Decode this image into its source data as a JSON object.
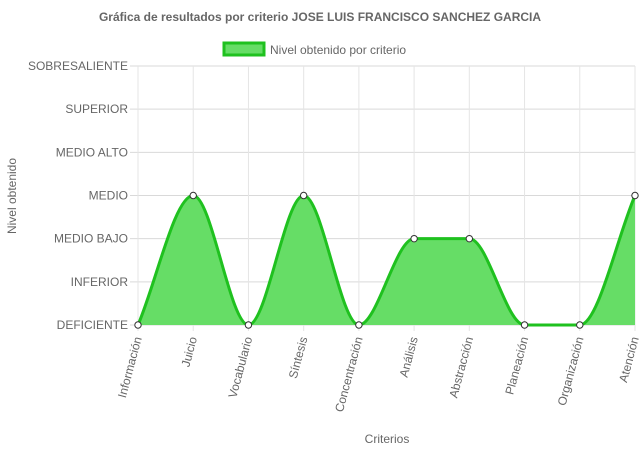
{
  "chart_data": {
    "type": "area",
    "title": "Gráfica de resultados por criterio JOSE LUIS FRANCISCO SANCHEZ GARCIA",
    "xlabel": "Criterios",
    "ylabel": "Nivel obtenido",
    "categories": [
      "Información",
      "Juicio",
      "Vocabulario",
      "Síntesis",
      "Concentración",
      "Análisis",
      "Abstracción",
      "Planeación",
      "Organización",
      "Atención"
    ],
    "y_levels": [
      "DEFICIENTE",
      "INFERIOR",
      "MEDIO BAJO",
      "MEDIO",
      "MEDIO ALTO",
      "SUPERIOR",
      "SOBRESALIENTE"
    ],
    "ylim": [
      0,
      6
    ],
    "series": [
      {
        "name": "Nivel obtenido por criterio",
        "values": [
          0,
          3,
          0,
          3,
          0,
          2,
          2,
          0,
          0,
          3
        ],
        "color": "#4dd94d",
        "fill_color": "#66dd66",
        "line_color": "#1fc11f"
      }
    ],
    "legend_position": "top",
    "grid": true
  }
}
